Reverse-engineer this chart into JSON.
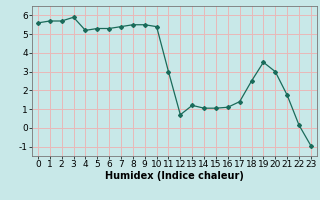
{
  "x_vals": [
    0,
    1,
    2,
    3,
    4,
    5,
    6,
    7,
    8,
    9,
    10,
    11,
    12,
    13,
    14,
    15,
    16,
    17,
    18,
    19,
    20,
    21,
    22,
    23
  ],
  "y_vals": [
    5.6,
    5.7,
    5.7,
    5.9,
    5.2,
    5.3,
    5.3,
    5.4,
    5.5,
    5.5,
    5.4,
    3.0,
    0.7,
    1.2,
    1.05,
    1.05,
    1.1,
    1.4,
    2.5,
    3.5,
    3.0,
    1.75,
    0.15,
    -0.95
  ],
  "line_color": "#1a6b5a",
  "bg_color": "#c8e8e8",
  "grid_color": "#e8b8b8",
  "xlabel": "Humidex (Indice chaleur)",
  "ylim": [
    -1.5,
    6.5
  ],
  "xlim": [
    -0.5,
    23.5
  ],
  "yticks": [
    -1,
    0,
    1,
    2,
    3,
    4,
    5,
    6
  ],
  "xticks": [
    0,
    1,
    2,
    3,
    4,
    5,
    6,
    7,
    8,
    9,
    10,
    11,
    12,
    13,
    14,
    15,
    16,
    17,
    18,
    19,
    20,
    21,
    22,
    23
  ],
  "xlabel_fontsize": 7,
  "tick_fontsize": 6.5
}
